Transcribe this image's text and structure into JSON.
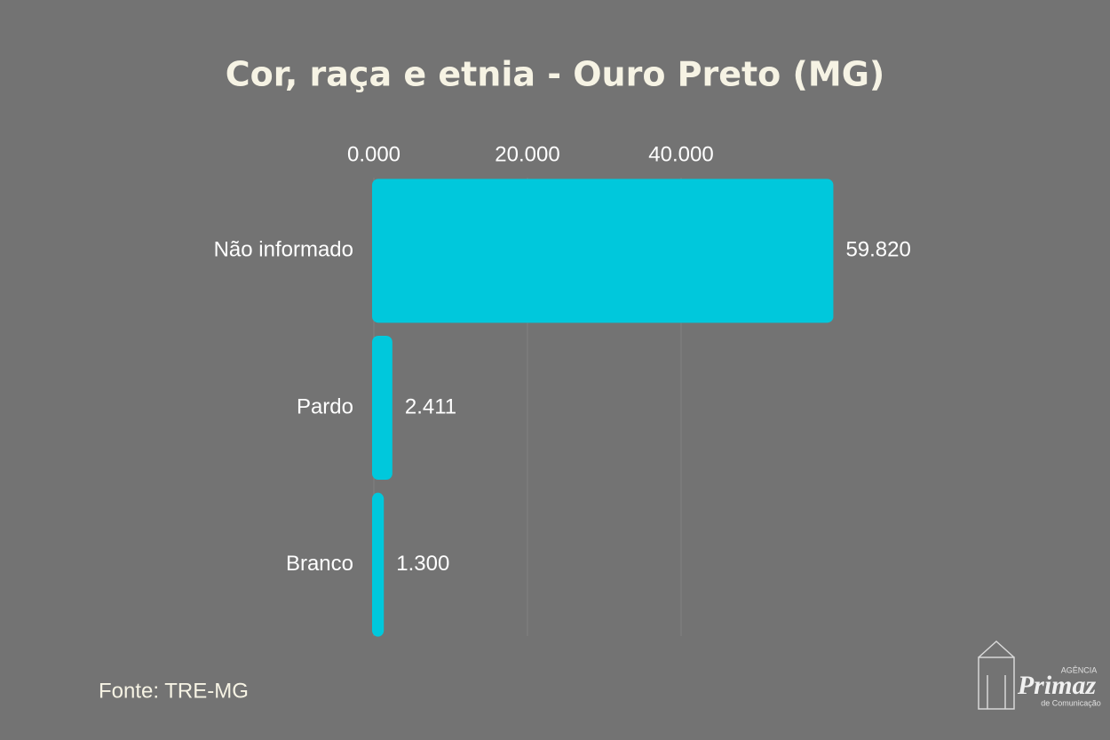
{
  "chart_data": {
    "type": "hbar",
    "title": "Cor, raça e etnia - Ouro Preto (MG)",
    "categories": [
      "Não informado",
      "Pardo",
      "Branco"
    ],
    "values": [
      59820,
      2411,
      1300
    ],
    "value_labels": [
      "59.820",
      "2.411",
      "1.300"
    ],
    "color": "#00c8dc",
    "xlim": [
      0,
      60000
    ],
    "xticks": [
      {
        "value": 0,
        "label": "0.000"
      },
      {
        "value": 20000,
        "label": "20.000"
      },
      {
        "value": 40000,
        "label": "40.000"
      }
    ],
    "grid": true
  },
  "source": "Fonte: TRE-MG",
  "logo": {
    "top": "AGÊNCIA",
    "name": "Primaz",
    "bottom": "de Comunicação"
  }
}
